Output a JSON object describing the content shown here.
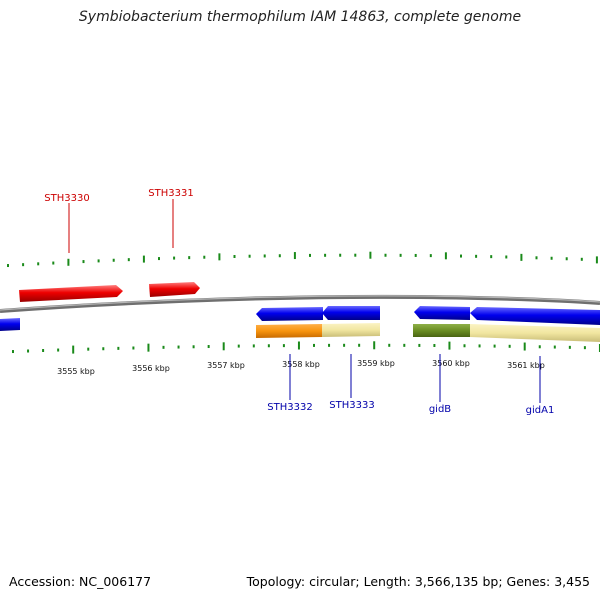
{
  "title": "Symbiobacterium thermophilum IAM 14863, complete genome",
  "footer": {
    "accession": "Accession: NC_006177",
    "summary": "Topology: circular; Length: 3,566,135 bp; Genes: 3,455"
  },
  "scale": {
    "unit": "kbp",
    "labels": [
      "3555 kbp",
      "3556 kbp",
      "3557 kbp",
      "3558 kbp",
      "3559 kbp",
      "3560 kbp",
      "3561 kbp"
    ]
  },
  "colors": {
    "forward_gene": "#ee0000",
    "reverse_gene": "#0000ee",
    "backbone": "#808080",
    "tick": "#1a8a1a",
    "forward_label": "#cc0000",
    "reverse_label": "#0000aa",
    "orange_track": "#f7940e",
    "pale_track": "#f1e6a0",
    "olive_track": "#6b8e23"
  },
  "genes": {
    "forward": [
      {
        "name": "STH3330"
      },
      {
        "name": "STH3331"
      }
    ],
    "reverse": [
      {
        "name": "STH3332"
      },
      {
        "name": "STH3333"
      },
      {
        "name": "gidB"
      },
      {
        "name": "gidA1"
      }
    ]
  }
}
